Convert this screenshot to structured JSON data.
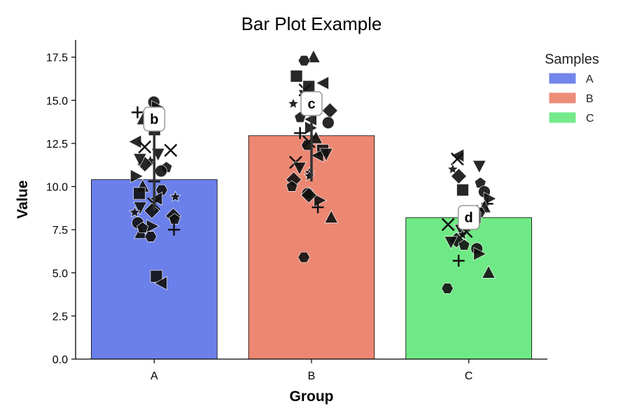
{
  "chart_data": {
    "type": "bar",
    "title": "Bar Plot Example",
    "xlabel": "Group",
    "ylabel": "Value",
    "categories": [
      "A",
      "B",
      "C"
    ],
    "values": [
      10.4,
      12.95,
      8.2
    ],
    "error": [
      {
        "low": 8.6,
        "high": 14.6
      },
      {
        "low": 10.3,
        "high": 15.5
      },
      {
        "low": 7.4,
        "high": 8.9
      }
    ],
    "significance": [
      "b",
      "c",
      "d"
    ],
    "ylim": [
      0,
      18.5
    ],
    "yticks": [
      0.0,
      2.5,
      5.0,
      7.5,
      10.0,
      12.5,
      15.0,
      17.5
    ],
    "ytick_labels": [
      "0.0",
      "2.5",
      "5.0",
      "7.5",
      "10.0",
      "12.5",
      "15.0",
      "17.5"
    ],
    "colors": [
      "#6b80ea",
      "#ec8772",
      "#6fe985"
    ],
    "legend": {
      "title": "Samples",
      "placement": "top-right",
      "entries": [
        {
          "label": "A",
          "color": "#6b80ea"
        },
        {
          "label": "B",
          "color": "#ec8772"
        },
        {
          "label": "C",
          "color": "#6fe985"
        }
      ]
    },
    "points": [
      [
        14.9,
        14.6,
        14.3,
        13.9,
        13.7,
        13.3,
        12.6,
        12.1,
        11.9,
        11.5,
        11.3,
        11.1,
        10.9,
        10.6,
        10.3,
        10.0,
        9.8,
        9.6,
        9.3,
        9.0,
        8.8,
        8.5,
        8.3,
        8.1,
        7.9,
        7.7,
        7.5,
        7.3,
        7.1,
        4.8,
        4.4,
        12.3,
        11.6,
        9.4,
        8.6,
        7.6
      ],
      [
        17.5,
        17.3,
        16.4,
        16.0,
        15.6,
        15.3,
        14.8,
        14.4,
        14.0,
        13.7,
        13.4,
        13.1,
        12.8,
        12.4,
        12.1,
        11.8,
        11.4,
        11.1,
        10.8,
        10.4,
        10.0,
        9.6,
        9.2,
        8.8,
        8.2,
        5.9,
        15.8,
        13.9,
        12.6,
        11.9,
        10.6,
        9.5
      ],
      [
        11.8,
        11.6,
        11.2,
        11.0,
        10.6,
        10.2,
        9.7,
        9.3,
        9.0,
        8.8,
        8.5,
        8.2,
        8.0,
        7.8,
        7.5,
        7.2,
        6.9,
        6.6,
        6.4,
        6.1,
        5.7,
        5.0,
        4.1,
        9.8,
        8.6,
        7.4,
        6.8
      ]
    ]
  }
}
